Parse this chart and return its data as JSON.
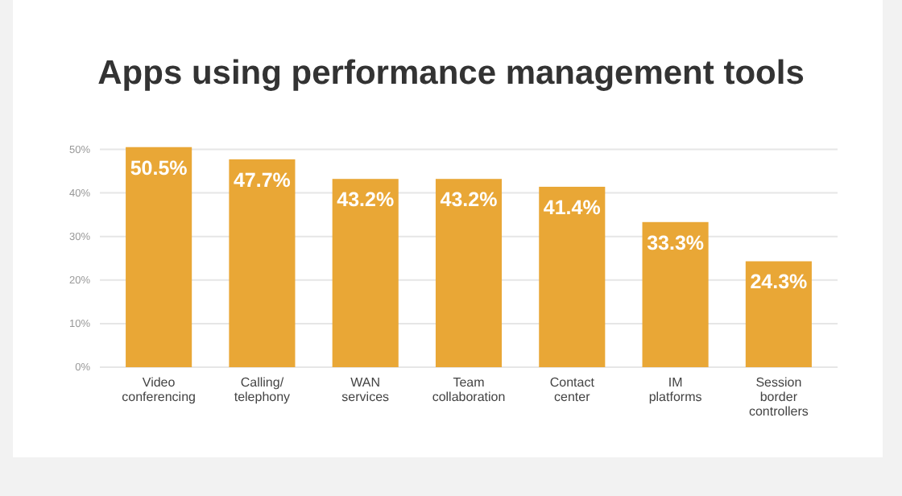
{
  "chart_data": {
    "type": "bar",
    "title": "Apps using performance management tools",
    "categories": [
      "Video\nconferencing",
      "Calling/\ntelephony",
      "WAN\nservices",
      "Team\ncollaboration",
      "Contact\ncenter",
      "IM\nplatforms",
      "Session\nborder\ncontrollers"
    ],
    "values": [
      50.5,
      47.7,
      43.2,
      43.2,
      41.4,
      33.3,
      24.3
    ],
    "value_labels": [
      "50.5%",
      "47.7%",
      "43.2%",
      "43.2%",
      "41.4%",
      "33.3%",
      "24.3%"
    ],
    "color": "#e9a736",
    "ylim": [
      0,
      51
    ],
    "yticks": [
      {
        "value": 0,
        "label": "0%"
      },
      {
        "value": 10,
        "label": "10%"
      },
      {
        "value": 20,
        "label": "20%"
      },
      {
        "value": 30,
        "label": "30%"
      },
      {
        "value": 40,
        "label": "40%"
      },
      {
        "value": 50,
        "label": "50%"
      }
    ],
    "grid": "y"
  }
}
